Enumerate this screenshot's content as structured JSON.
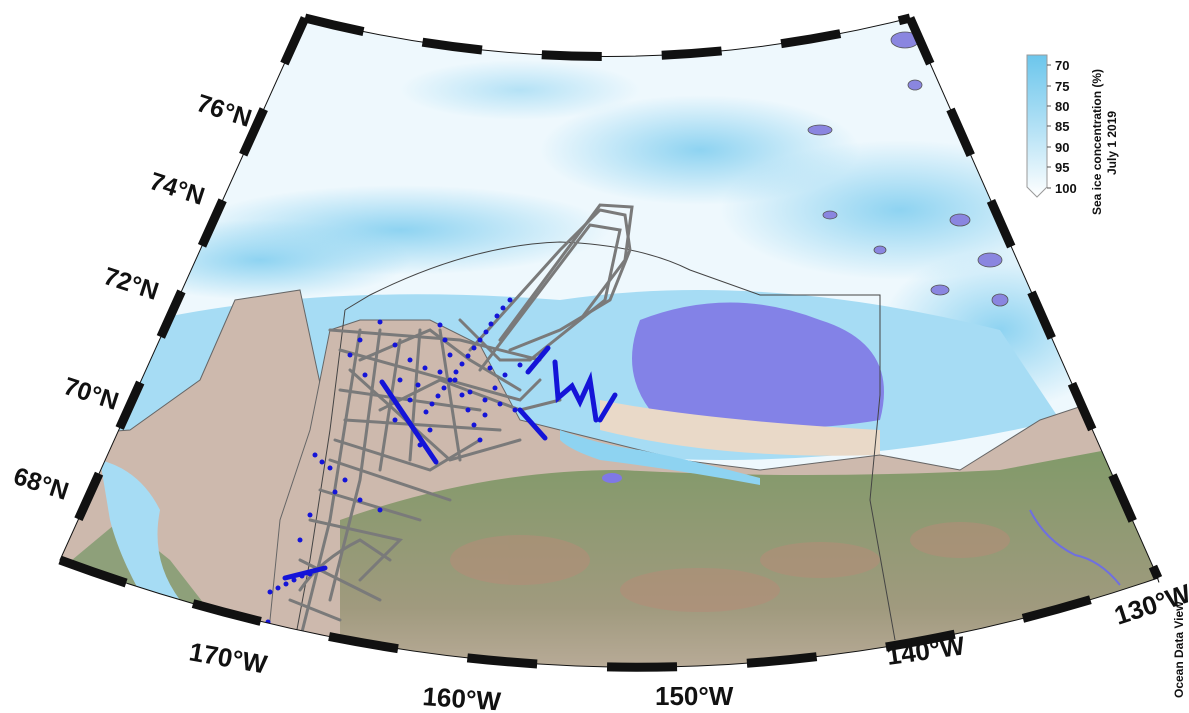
{
  "map": {
    "lat_labels": [
      "76°N",
      "74°N",
      "72°N",
      "70°N",
      "68°N"
    ],
    "lon_labels": [
      "170°W",
      "160°W",
      "150°W",
      "140°W",
      "130°W"
    ],
    "credit": "Ocean Data View"
  },
  "colorbar": {
    "title_line1": "Sea ice concentration (%)",
    "title_line2": "July 1 2019",
    "ticks": [
      "70",
      "75",
      "80",
      "85",
      "90",
      "95",
      "100"
    ],
    "colors": {
      "low": "#6cc6ec",
      "high": "#ffffff"
    }
  },
  "colors": {
    "land": "#cdb9ad",
    "open_water": "#7f78e6",
    "ice_mid": "#a6dcf4",
    "ship_track": "#7a7a7a",
    "stations": "#1414d8",
    "boundary": "#555555"
  }
}
